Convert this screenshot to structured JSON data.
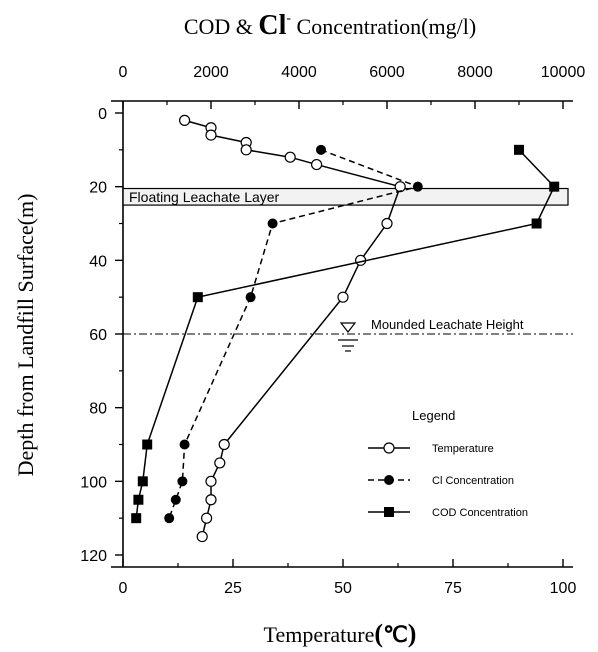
{
  "chart_data": {
    "type": "line",
    "title_top_axis": {
      "prefix": "COD & ",
      "ion": "Cl",
      "ion_sup": "-",
      "suffix": " Concentration(mg/l)"
    },
    "xlabel_bottom": {
      "text": "Temperature",
      "unit_open": "(",
      "unit": "℃",
      "unit_close": ")"
    },
    "ylabel": "Depth from Landfill Surface(m)",
    "top_axis": {
      "range": [
        0,
        10000
      ],
      "ticks": [
        "0",
        "2000",
        "4000",
        "6000",
        "8000",
        "10000"
      ]
    },
    "bottom_axis": {
      "range": [
        0,
        100
      ],
      "ticks": [
        "0",
        "25",
        "50",
        "75",
        "100"
      ]
    },
    "y_axis": {
      "range": [
        0,
        120
      ],
      "inverted": true,
      "ticks": [
        "0",
        "20",
        "40",
        "60",
        "80",
        "100",
        "120"
      ]
    },
    "series": [
      {
        "name": "Temperature",
        "axis": "bottom",
        "marker": "open-circle",
        "line": "solid",
        "points": [
          [
            14,
            2
          ],
          [
            20,
            4
          ],
          [
            20,
            6
          ],
          [
            28,
            8
          ],
          [
            28,
            10
          ],
          [
            38,
            12
          ],
          [
            44,
            14
          ],
          [
            63,
            20
          ],
          [
            60,
            30
          ],
          [
            54,
            40
          ],
          [
            50,
            50
          ],
          [
            23,
            90
          ],
          [
            22,
            95
          ],
          [
            20,
            100
          ],
          [
            20,
            105
          ],
          [
            19,
            110
          ],
          [
            18,
            115
          ]
        ]
      },
      {
        "name": "Cl Concentration",
        "axis": "top",
        "marker": "filled-circle",
        "line": "dashed",
        "points": [
          [
            4500,
            10
          ],
          [
            6700,
            20
          ],
          [
            3400,
            30
          ],
          [
            2900,
            50
          ],
          [
            1400,
            90
          ],
          [
            1350,
            100
          ],
          [
            1200,
            105
          ],
          [
            1050,
            110
          ]
        ]
      },
      {
        "name": "COD Concentration",
        "axis": "top",
        "marker": "filled-square",
        "line": "solid",
        "points": [
          [
            9000,
            10
          ],
          [
            9800,
            20
          ],
          [
            9400,
            30
          ],
          [
            1700,
            50
          ],
          [
            550,
            90
          ],
          [
            450,
            100
          ],
          [
            350,
            105
          ],
          [
            300,
            110
          ]
        ]
      }
    ],
    "bands": [
      {
        "label": "Floating Leachate Layer",
        "y_range": [
          20.5,
          25
        ]
      }
    ],
    "reference_lines": [
      {
        "label": "Mounded Leachate Height",
        "y": 60
      }
    ],
    "legend": {
      "title": "Legend",
      "position": "lower-right"
    }
  }
}
